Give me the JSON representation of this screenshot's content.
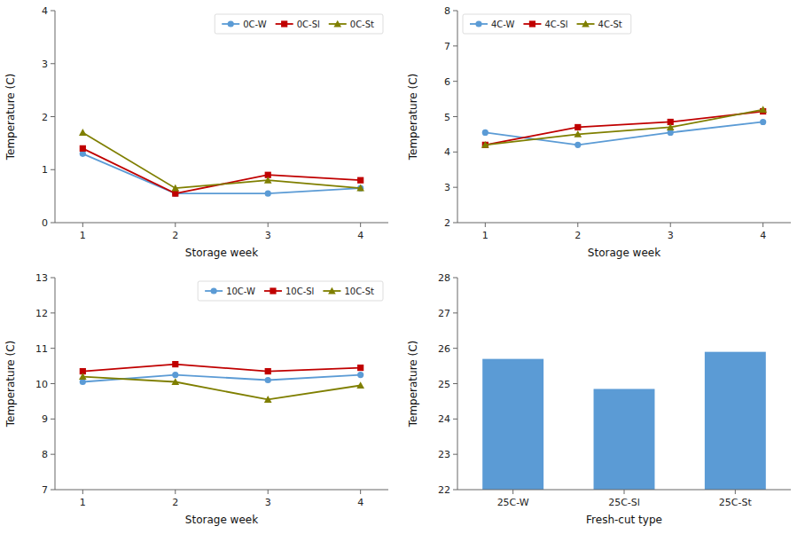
{
  "chart_data": [
    {
      "type": "line",
      "xlabel": "Storage week",
      "ylabel": "Temperature (C)",
      "x": [
        1,
        2,
        3,
        4
      ],
      "xlim": [
        0.7,
        4.3
      ],
      "xticks": [
        1,
        2,
        3,
        4
      ],
      "ylim": [
        0,
        4
      ],
      "yticks": [
        0,
        1,
        2,
        3,
        4
      ],
      "grid": false,
      "legend": "upper right",
      "series": [
        {
          "name": "0C-W",
          "color": "#5B9BD5",
          "marker": "circle",
          "values": [
            1.3,
            0.55,
            0.55,
            0.65
          ]
        },
        {
          "name": "0C-Sl",
          "color": "#C00000",
          "marker": "square",
          "values": [
            1.4,
            0.55,
            0.9,
            0.8
          ]
        },
        {
          "name": "0C-St",
          "color": "#7F7F00",
          "marker": "triangle",
          "values": [
            1.7,
            0.65,
            0.8,
            0.65
          ]
        }
      ]
    },
    {
      "type": "line",
      "xlabel": "Storage week",
      "ylabel": "Temperature (C)",
      "x": [
        1,
        2,
        3,
        4
      ],
      "xlim": [
        0.7,
        4.3
      ],
      "xticks": [
        1,
        2,
        3,
        4
      ],
      "ylim": [
        2,
        8
      ],
      "yticks": [
        2,
        3,
        4,
        5,
        6,
        7,
        8
      ],
      "grid": false,
      "legend": "upper left",
      "series": [
        {
          "name": "4C-W",
          "color": "#5B9BD5",
          "marker": "circle",
          "values": [
            4.55,
            4.2,
            4.55,
            4.85
          ]
        },
        {
          "name": "4C-Sl",
          "color": "#C00000",
          "marker": "square",
          "values": [
            4.2,
            4.7,
            4.85,
            5.15
          ]
        },
        {
          "name": "4C-St",
          "color": "#7F7F00",
          "marker": "triangle",
          "values": [
            4.2,
            4.5,
            4.7,
            5.2
          ]
        }
      ]
    },
    {
      "type": "line",
      "xlabel": "Storage week",
      "ylabel": "Temperature (C)",
      "x": [
        1,
        2,
        3,
        4
      ],
      "xlim": [
        0.7,
        4.3
      ],
      "xticks": [
        1,
        2,
        3,
        4
      ],
      "ylim": [
        7,
        13
      ],
      "yticks": [
        7,
        8,
        9,
        10,
        11,
        12,
        13
      ],
      "grid": false,
      "legend": "upper right",
      "series": [
        {
          "name": "10C-W",
          "color": "#5B9BD5",
          "marker": "circle",
          "values": [
            10.05,
            10.25,
            10.1,
            10.25
          ]
        },
        {
          "name": "10C-Sl",
          "color": "#C00000",
          "marker": "square",
          "values": [
            10.35,
            10.55,
            10.35,
            10.45
          ]
        },
        {
          "name": "10C-St",
          "color": "#7F7F00",
          "marker": "triangle",
          "values": [
            10.2,
            10.05,
            9.55,
            9.95
          ]
        }
      ]
    },
    {
      "type": "bar",
      "xlabel": "Fresh-cut type",
      "ylabel": "Temperature (C)",
      "categories": [
        "25C-W",
        "25C-Sl",
        "25C-St"
      ],
      "values": [
        25.7,
        24.85,
        25.9
      ],
      "color": "#5B9BD5",
      "ylim": [
        22,
        28
      ],
      "yticks": [
        22,
        23,
        24,
        25,
        26,
        27,
        28
      ],
      "grid": false
    }
  ]
}
